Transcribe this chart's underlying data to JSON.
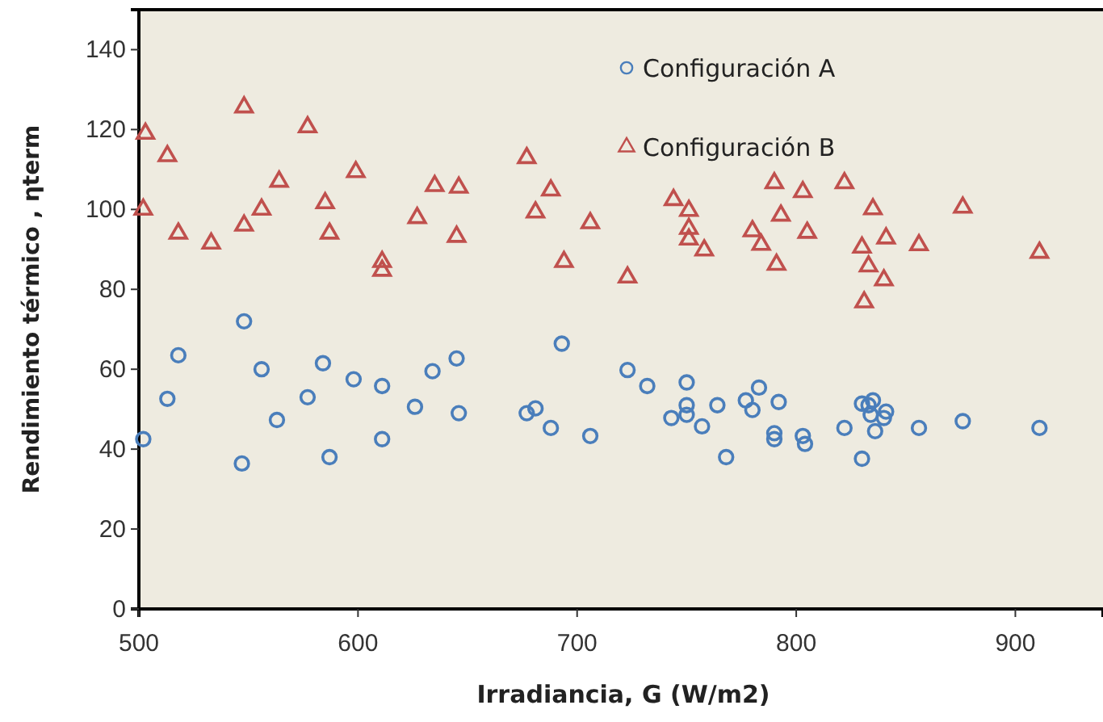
{
  "chart_data": {
    "type": "scatter",
    "xlabel": "Irradiancia, G (W/m2)",
    "ylabel": "Rendimiento térmico , ηterm",
    "xlim": [
      500,
      940
    ],
    "xticks": [
      500,
      600,
      700,
      800,
      900
    ],
    "ylim": [
      0,
      150
    ],
    "yticks": [
      0,
      20,
      40,
      60,
      80,
      100,
      120,
      140
    ],
    "grid": false,
    "legend": "top right",
    "series": [
      {
        "name": "Configuración A",
        "color": "#4a7ebb",
        "marker": "circle",
        "x": [
          502,
          513,
          518,
          548,
          547,
          556,
          563,
          577,
          584,
          587,
          598,
          611,
          611,
          626,
          634,
          645,
          646,
          677,
          681,
          688,
          693,
          706,
          723,
          732,
          750,
          750,
          750,
          743,
          757,
          764,
          768,
          777,
          780,
          783,
          792,
          790,
          790,
          803,
          804,
          822,
          830,
          833,
          835,
          834,
          830,
          836,
          841,
          840,
          856,
          876,
          911
        ],
        "values": [
          42.5,
          52.6,
          63.5,
          72,
          36.4,
          60,
          47.3,
          53,
          61.5,
          38,
          57.5,
          55.8,
          42.5,
          50.6,
          59.5,
          62.7,
          49,
          49,
          50.2,
          45.3,
          66.4,
          43.3,
          59.8,
          55.8,
          56.7,
          51,
          48.6,
          47.8,
          45.7,
          51,
          38,
          52.2,
          49.8,
          55.4,
          51.8,
          44,
          42.5,
          43.3,
          41.3,
          45.3,
          51.4,
          51,
          52.2,
          48.6,
          37.6,
          44.5,
          49.4,
          47.8,
          45.3,
          47,
          45.3
        ]
      },
      {
        "name": "Configuración B",
        "color": "#c0504d",
        "marker": "triangle",
        "x": [
          502,
          503,
          513,
          518,
          533,
          548,
          548,
          556,
          564,
          577,
          585,
          587,
          599,
          611,
          611,
          627,
          635,
          645,
          646,
          677,
          681,
          688,
          694,
          706,
          723,
          744,
          751,
          751,
          751,
          758,
          780,
          784,
          790,
          791,
          793,
          803,
          805,
          822,
          830,
          831,
          833,
          835,
          840,
          841,
          856,
          876,
          911
        ],
        "values": [
          100,
          119,
          113.4,
          94,
          91.5,
          96,
          125.6,
          100,
          107,
          120.6,
          101.6,
          94,
          109.4,
          86.9,
          84.7,
          97.9,
          105.9,
          93.2,
          105.5,
          112.9,
          99.3,
          104.8,
          86.9,
          96.6,
          83,
          102.4,
          99.7,
          95.2,
          92.5,
          89.8,
          94.6,
          91.2,
          106.6,
          86.2,
          98.5,
          104.4,
          94.2,
          106.6,
          90.5,
          76.8,
          85.8,
          100.1,
          82.3,
          92.8,
          91.1,
          100.5,
          89.2
        ]
      }
    ]
  }
}
